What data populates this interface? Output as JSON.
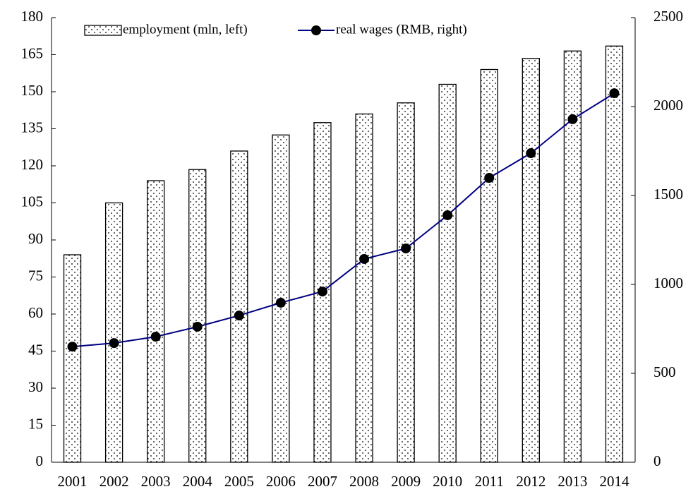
{
  "chart_data": {
    "type": "bar-line",
    "categories": [
      "2001",
      "2002",
      "2003",
      "2004",
      "2005",
      "2006",
      "2007",
      "2008",
      "2009",
      "2010",
      "2011",
      "2012",
      "2013",
      "2014"
    ],
    "series": [
      {
        "name": "employment (mln, left)",
        "type": "bar",
        "color": "#000000",
        "values": [
          84,
          105,
          114,
          118.5,
          126,
          132.5,
          137.5,
          141,
          145.5,
          153,
          159,
          163.5,
          166.5,
          168.5
        ]
      },
      {
        "name": "real wages (RMB, right)",
        "type": "line",
        "axis": "y2",
        "color": "#000080",
        "values": [
          650,
          670,
          706,
          762,
          825,
          897,
          960,
          1143,
          1202,
          1389,
          1599,
          1738,
          1929,
          2075
        ]
      }
    ],
    "ylim": [
      0,
      180
    ],
    "yticks": [
      0,
      15,
      30,
      45,
      60,
      75,
      90,
      105,
      120,
      135,
      150,
      165,
      180
    ],
    "y2lim": [
      0,
      2500
    ],
    "y2ticks": [
      0,
      500,
      1000,
      1500,
      2000,
      2500
    ]
  }
}
